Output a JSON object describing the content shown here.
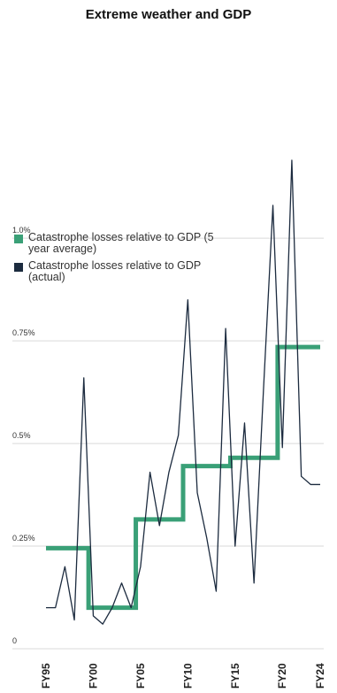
{
  "chart_data": {
    "type": "line",
    "title": "Extreme weather and GDP",
    "xlabel": "",
    "ylabel": "",
    "x": [
      "FY95",
      "FY96",
      "FY97",
      "FY98",
      "FY99",
      "FY00",
      "FY01",
      "FY02",
      "FY03",
      "FY04",
      "FY05",
      "FY06",
      "FY07",
      "FY08",
      "FY09",
      "FY10",
      "FY11",
      "FY12",
      "FY13",
      "FY14",
      "FY15",
      "FY16",
      "FY17",
      "FY18",
      "FY19",
      "FY20",
      "FY21",
      "FY22",
      "FY23",
      "FY24"
    ],
    "xticks": [
      "FY95",
      "FY00",
      "FY05",
      "FY10",
      "FY15",
      "FY20",
      "FY24"
    ],
    "yticks": [
      "0",
      "0.25%",
      "0.5%",
      "0.75%",
      "1.0%"
    ],
    "ylim": [
      0,
      1.0
    ],
    "grid": true,
    "legend_position": "left",
    "series": [
      {
        "name": "Catastrophe losses relative to GDP (5 year average)",
        "color": "#3aa077",
        "step": true,
        "values": [
          0.245,
          0.245,
          0.245,
          0.245,
          0.245,
          0.1,
          0.1,
          0.1,
          0.1,
          0.1,
          0.315,
          0.315,
          0.315,
          0.315,
          0.315,
          0.445,
          0.445,
          0.445,
          0.445,
          0.445,
          0.465,
          0.465,
          0.465,
          0.465,
          0.465,
          0.735,
          0.735,
          0.735,
          0.735,
          0.735
        ]
      },
      {
        "name": "Catastrophe losses relative to GDP (actual)",
        "color": "#1c2b3f",
        "step": false,
        "values": [
          0.1,
          0.1,
          0.2,
          0.07,
          0.66,
          0.08,
          0.06,
          0.1,
          0.16,
          0.1,
          0.2,
          0.43,
          0.3,
          0.43,
          0.52,
          0.85,
          0.38,
          0.27,
          0.14,
          0.78,
          0.25,
          0.55,
          0.16,
          0.63,
          1.08,
          0.49,
          1.19,
          0.42,
          0.4,
          0.4
        ]
      }
    ]
  }
}
